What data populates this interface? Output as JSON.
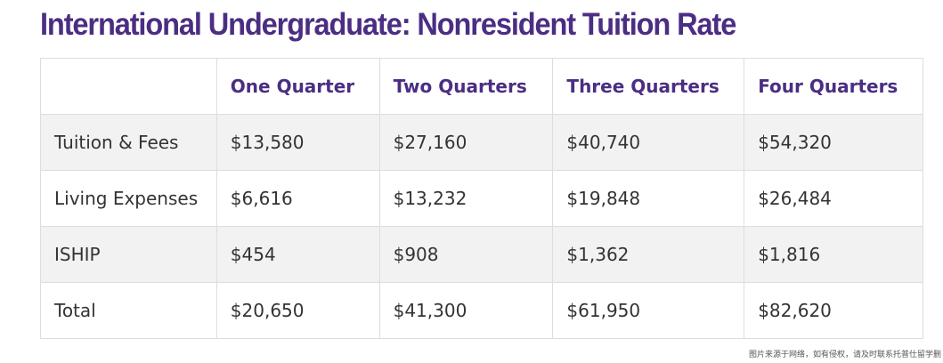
{
  "header": {
    "title": "International Undergraduate: Nonresident Tuition Rate"
  },
  "table": {
    "columns": [
      "",
      "One Quarter",
      "Two Quarters",
      "Three Quarters",
      "Four Quarters"
    ],
    "rows": [
      [
        "Tuition & Fees",
        "$13,580",
        "$27,160",
        "$40,740",
        "$54,320"
      ],
      [
        "Living Expenses",
        "$6,616",
        "$13,232",
        "$19,848",
        "$26,484"
      ],
      [
        "ISHIP",
        "$454",
        "$908",
        "$1,362",
        "$1,816"
      ],
      [
        "Total",
        "$20,650",
        "$41,300",
        "$61,950",
        "$82,620"
      ]
    ]
  },
  "footer": {
    "note": "图片来源于网络，如有侵权，请及时联系托普仕留学删"
  }
}
